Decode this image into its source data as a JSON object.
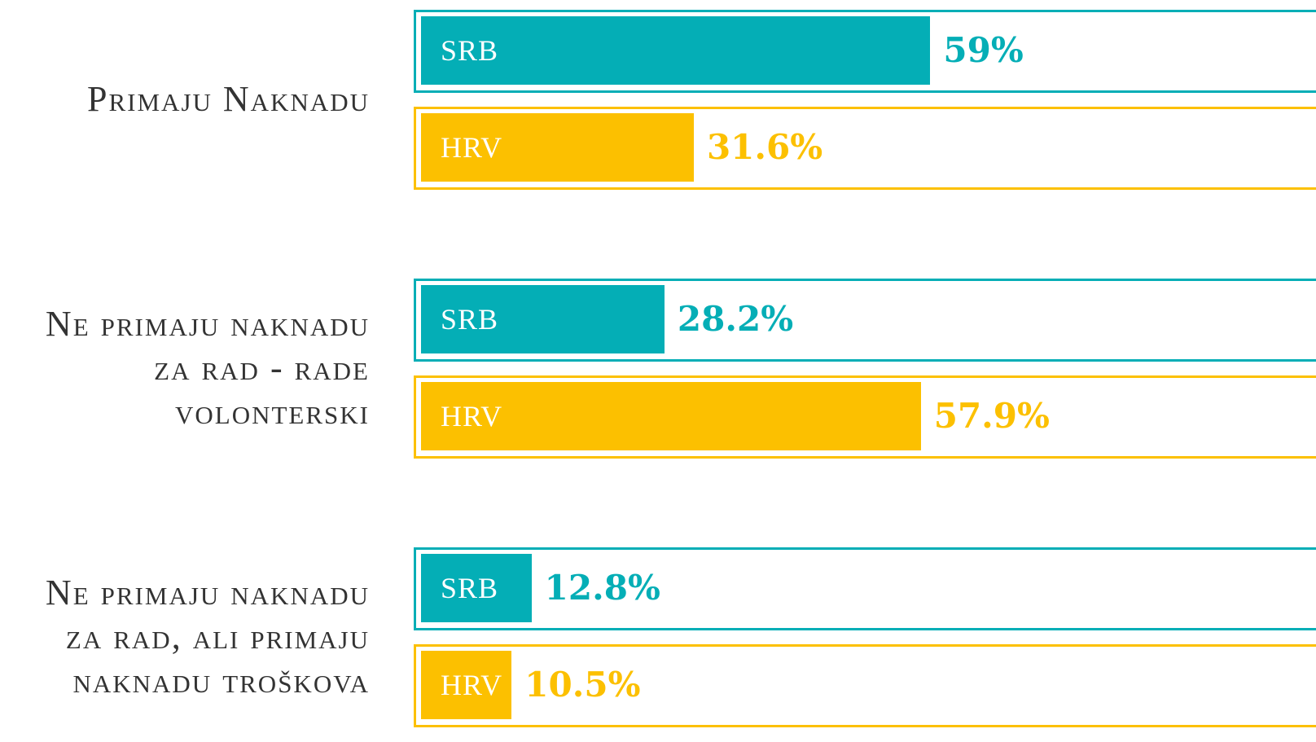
{
  "chart_data": {
    "type": "bar",
    "categories": [
      "Primaju Naknadu",
      "Ne primaju naknadu za rad - rade volonterski",
      "Ne primaju naknadu za rad, ali primaju naknadu troškova"
    ],
    "series": [
      {
        "name": "SRB",
        "color": "#04aeb6",
        "values": [
          59,
          28.2,
          12.8
        ],
        "value_labels": [
          "59%",
          "28.2%",
          "12.8%"
        ]
      },
      {
        "name": "HRV",
        "color": "#fcc000",
        "values": [
          31.6,
          57.9,
          10.5
        ],
        "value_labels": [
          "31.6%",
          "57.9%",
          "10.5%"
        ]
      }
    ],
    "xlim": [
      0,
      100
    ]
  }
}
